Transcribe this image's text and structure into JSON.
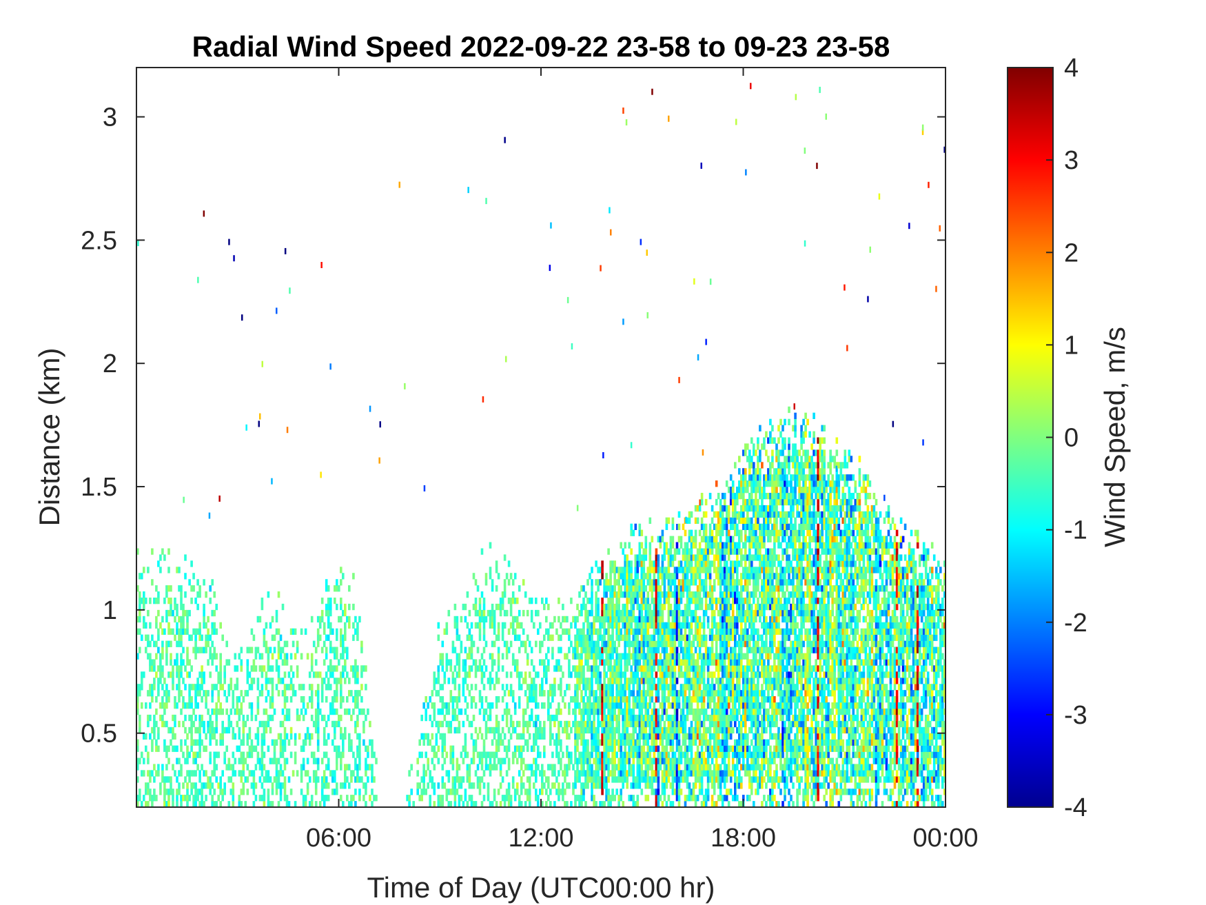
{
  "chart_data": {
    "type": "heatmap",
    "title": "Radial Wind Speed 2022-09-22 23-58 to 09-23 23-58",
    "xlabel": "Time of Day (UTC00:00 hr)",
    "ylabel": "Distance (km)",
    "colorbar_label": "Wind Speed, m/s",
    "colormap": "jet",
    "xlim_hours": [
      0,
      24
    ],
    "ylim_km": [
      0.2,
      3.2
    ],
    "clim": [
      -4,
      4
    ],
    "x_ticks": [
      {
        "value": 6,
        "label": "06:00"
      },
      {
        "value": 12,
        "label": "12:00"
      },
      {
        "value": 18,
        "label": "18:00"
      },
      {
        "value": 24,
        "label": "00:00"
      }
    ],
    "y_ticks": [
      {
        "value": 0.5,
        "label": "0.5"
      },
      {
        "value": 1,
        "label": "1"
      },
      {
        "value": 1.5,
        "label": "1.5"
      },
      {
        "value": 2,
        "label": "2"
      },
      {
        "value": 2.5,
        "label": "2.5"
      },
      {
        "value": 3,
        "label": "3"
      }
    ],
    "colorbar_ticks": [
      {
        "value": 4,
        "label": "4"
      },
      {
        "value": 3,
        "label": "3"
      },
      {
        "value": 2,
        "label": "2"
      },
      {
        "value": 1,
        "label": "1"
      },
      {
        "value": 0,
        "label": "0"
      },
      {
        "value": -1,
        "label": "-1"
      },
      {
        "value": -2,
        "label": "-2"
      },
      {
        "value": -3,
        "label": "-3"
      },
      {
        "value": -4,
        "label": "-4"
      }
    ],
    "grid": false,
    "data_coverage_envelope": [
      {
        "hour": 0.0,
        "top_km": 1.3
      },
      {
        "hour": 1.0,
        "top_km": 1.25
      },
      {
        "hour": 2.0,
        "top_km": 1.2
      },
      {
        "hour": 3.0,
        "top_km": 0.85
      },
      {
        "hour": 4.0,
        "top_km": 1.15
      },
      {
        "hour": 5.0,
        "top_km": 0.9
      },
      {
        "hour": 5.5,
        "top_km": 1.2
      },
      {
        "hour": 6.5,
        "top_km": 1.15
      },
      {
        "hour": 7.5,
        "top_km": 0.0
      },
      {
        "hour": 9.0,
        "top_km": 1.0
      },
      {
        "hour": 10.5,
        "top_km": 1.3
      },
      {
        "hour": 12.0,
        "top_km": 1.05
      },
      {
        "hour": 13.0,
        "top_km": 1.1
      },
      {
        "hour": 14.5,
        "top_km": 1.35
      },
      {
        "hour": 16.0,
        "top_km": 1.4
      },
      {
        "hour": 17.0,
        "top_km": 1.5
      },
      {
        "hour": 18.0,
        "top_km": 1.7
      },
      {
        "hour": 19.5,
        "top_km": 1.85
      },
      {
        "hour": 21.0,
        "top_km": 1.7
      },
      {
        "hour": 22.5,
        "top_km": 1.4
      },
      {
        "hour": 24.0,
        "top_km": 1.25
      }
    ]
  }
}
